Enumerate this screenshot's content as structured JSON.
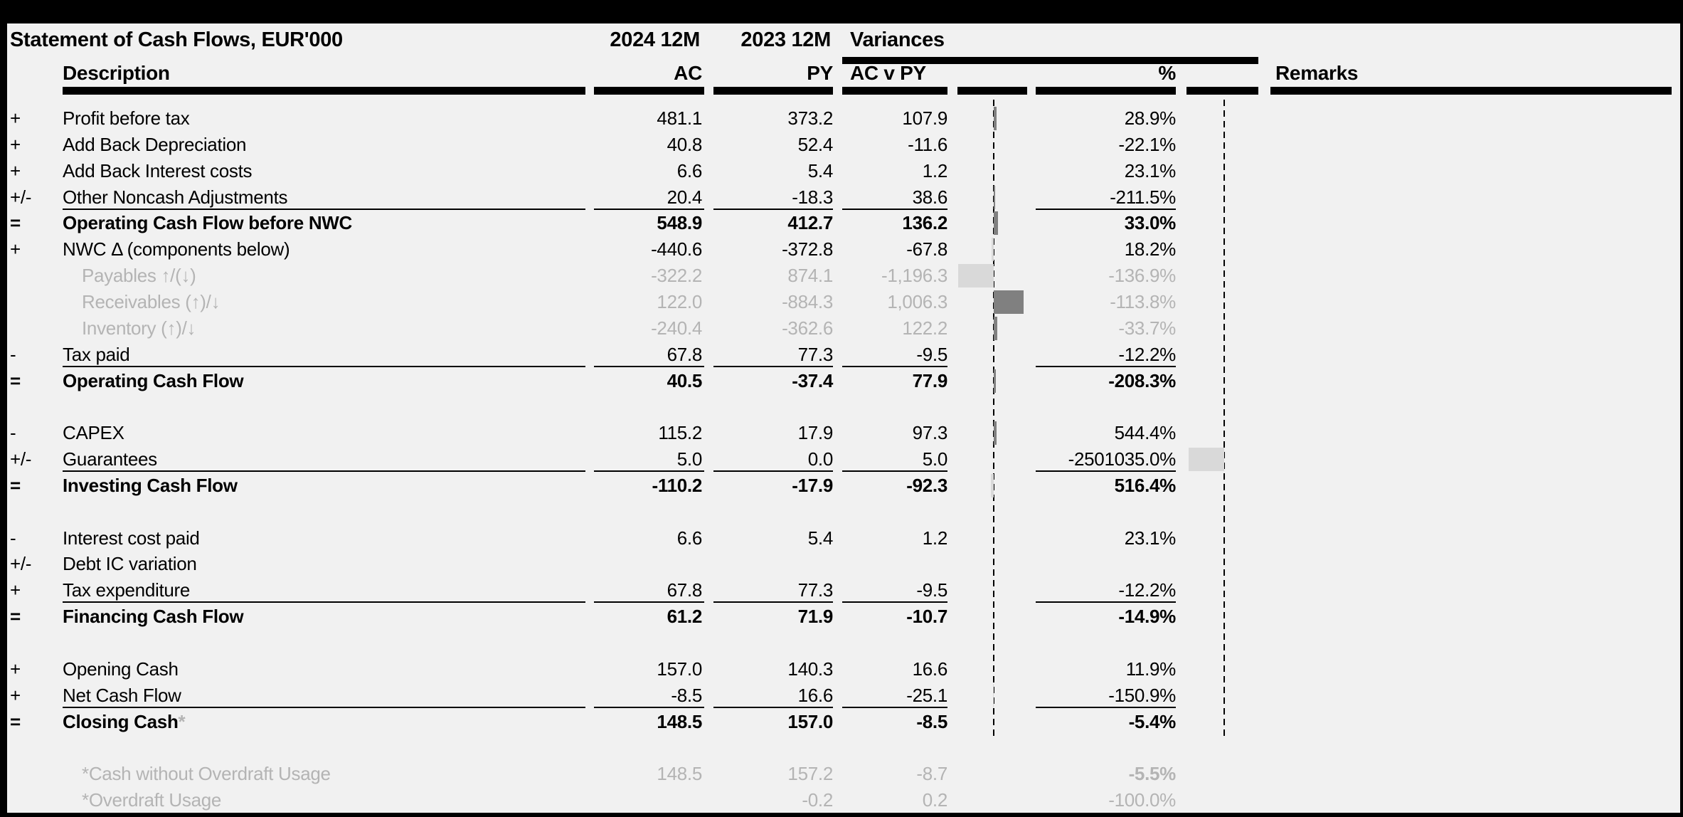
{
  "title": "Statement of Cash Flows, EUR'000",
  "header": {
    "ac_period": "2024 12M",
    "py_period": "2023 12M",
    "variances": "Variances",
    "description": "Description",
    "ac": "AC",
    "py": "PY",
    "ac_v_py": "AC v PY",
    "pct": "%",
    "remarks": "Remarks"
  },
  "colors": {
    "background": "#f1f1f1",
    "text": "#000000",
    "muted_text": "#b4b4b4",
    "bar_positive": "#808080",
    "bar_negative": "#d9d9d9"
  },
  "chart_data": {
    "type": "bar",
    "note": "in-row variance bars on dashed axes",
    "series": [
      {
        "name": "AC v PY",
        "axis": "dashed-1"
      },
      {
        "name": "%",
        "axis": "dashed-2"
      }
    ]
  },
  "sections": [
    {
      "rows": [
        {
          "sign": "+",
          "label": "Profit before tax",
          "ac": "481.1",
          "py": "373.2",
          "variance": "107.9",
          "pct": "28.9%"
        },
        {
          "sign": "+",
          "label": "Add Back Depreciation",
          "ac": "40.8",
          "py": "52.4",
          "variance": "-11.6",
          "pct": "-22.1%"
        },
        {
          "sign": "+",
          "label": "Add Back Interest costs",
          "ac": "6.6",
          "py": "5.4",
          "variance": "1.2",
          "pct": "23.1%"
        },
        {
          "sign": "+/-",
          "label": "Other Noncash Adjustments",
          "ac": "20.4",
          "py": "-18.3",
          "variance": "38.6",
          "pct": "-211.5%",
          "line_after": true
        },
        {
          "sign": "=",
          "label": "Operating Cash Flow before NWC",
          "bold": true,
          "ac": "548.9",
          "py": "412.7",
          "variance": "136.2",
          "pct": "33.0%"
        },
        {
          "sign": "+",
          "label": "NWC Δ (components below)",
          "ac": "-440.6",
          "py": "-372.8",
          "variance": "-67.8",
          "pct": "18.2%"
        },
        {
          "sign": "",
          "label": "Payables ↑/(↓)",
          "gray": true,
          "indent": 1,
          "ac": "-322.2",
          "py": "874.1",
          "variance": "-1,196.3",
          "pct": "-136.9%"
        },
        {
          "sign": "",
          "label": "Receivables (↑)/↓",
          "gray": true,
          "indent": 1,
          "ac": "122.0",
          "py": "-884.3",
          "variance": "1,006.3",
          "pct": "-113.8%"
        },
        {
          "sign": "",
          "label": "Inventory (↑)/↓",
          "gray": true,
          "indent": 1,
          "ac": "-240.4",
          "py": "-362.6",
          "variance": "122.2",
          "pct": "-33.7%"
        },
        {
          "sign": "-",
          "label": "Tax paid",
          "ac": "67.8",
          "py": "77.3",
          "variance": "-9.5",
          "pct": "-12.2%",
          "line_after": true
        },
        {
          "sign": "=",
          "label": "Operating Cash Flow",
          "bold": true,
          "ac": "40.5",
          "py": "-37.4",
          "variance": "77.9",
          "pct": "-208.3%"
        }
      ]
    },
    {
      "rows": [
        {
          "sign": "-",
          "label": "CAPEX",
          "ac": "115.2",
          "py": "17.9",
          "variance": "97.3",
          "pct": "544.4%"
        },
        {
          "sign": "+/-",
          "label": "Guarantees",
          "ac": "5.0",
          "py": "0.0",
          "variance": "5.0",
          "pct": "-2501035.0%",
          "line_after": true
        },
        {
          "sign": "=",
          "label": "Investing Cash Flow",
          "bold": true,
          "ac": "-110.2",
          "py": "-17.9",
          "variance": "-92.3",
          "pct": "516.4%"
        }
      ]
    },
    {
      "rows": [
        {
          "sign": "-",
          "label": "Interest cost paid",
          "ac": "6.6",
          "py": "5.4",
          "variance": "1.2",
          "pct": "23.1%"
        },
        {
          "sign": "+/-",
          "label": "Debt IC variation",
          "ac": "",
          "py": "",
          "variance": "",
          "pct": ""
        },
        {
          "sign": "+",
          "label": "Tax expenditure",
          "ac": "67.8",
          "py": "77.3",
          "variance": "-9.5",
          "pct": "-12.2%",
          "line_after": true
        },
        {
          "sign": "=",
          "label": "Financing Cash Flow",
          "bold": true,
          "ac": "61.2",
          "py": "71.9",
          "variance": "-10.7",
          "pct": "-14.9%",
          "pct_bold": true
        }
      ]
    },
    {
      "rows": [
        {
          "sign": "+",
          "label": "Opening Cash",
          "ac": "157.0",
          "py": "140.3",
          "variance": "16.6",
          "pct": "11.9%"
        },
        {
          "sign": "+",
          "label": "Net Cash Flow",
          "ac": "-8.5",
          "py": "16.6",
          "variance": "-25.1",
          "pct": "-150.9%",
          "line_after": true
        },
        {
          "sign": "=",
          "label": "Closing Cash",
          "star": "*",
          "bold": true,
          "ac": "148.5",
          "py": "157.0",
          "variance": "-8.5",
          "pct": "-5.4%",
          "pct_bold": true
        }
      ]
    },
    {
      "footnote": true,
      "rows": [
        {
          "sign": "",
          "label": "*Cash without Overdraft Usage",
          "gray": true,
          "indent": 1,
          "ac": "148.5",
          "py": "157.2",
          "variance": "-8.7",
          "pct": "-5.5%",
          "pct_bold": true
        },
        {
          "sign": "",
          "label": "*Overdraft Usage",
          "gray": true,
          "indent": 1,
          "ac": "",
          "py": "-0.2",
          "variance": "0.2",
          "pct": "-100.0%"
        }
      ]
    }
  ]
}
